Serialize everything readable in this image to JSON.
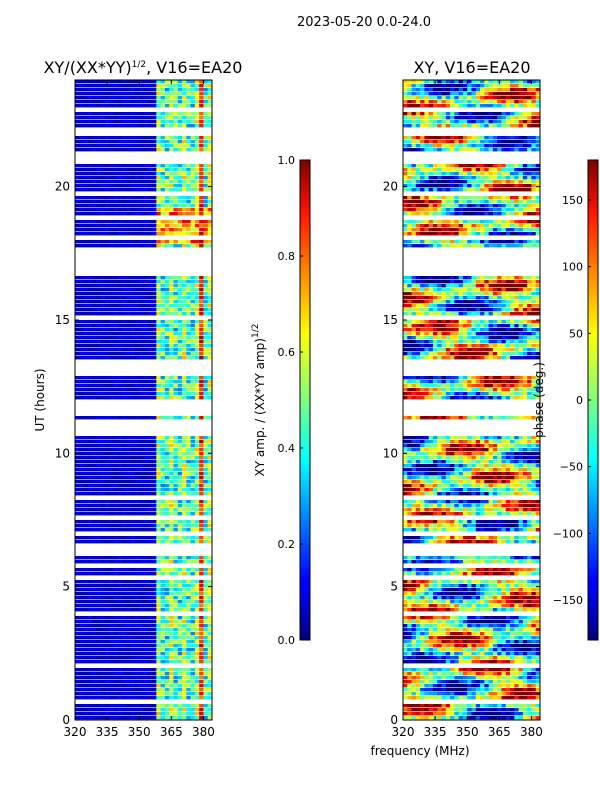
{
  "chart_data": [
    {
      "type": "heatmap",
      "suptitle": "2023-05-20 0.0-24.0",
      "title_main": "XY/(XX*YY)",
      "title_exp": "1/2",
      "title_rest": ", V16=EA20",
      "ylabel": "UT (hours)",
      "xticks": [
        "320",
        "335",
        "350",
        "365",
        "380"
      ],
      "xlim": [
        320,
        384
      ],
      "yticks": [
        "0",
        "5",
        "10",
        "15",
        "20"
      ],
      "ylim": [
        0,
        24
      ],
      "colorbar": {
        "label_main": "XY amp. / (XX*YY amp)",
        "label_exp": "1/2",
        "ticks": [
          "0.0",
          "0.2",
          "0.4",
          "0.6",
          "0.8",
          "1.0"
        ],
        "range": [
          0,
          1
        ],
        "cmap": "jet"
      },
      "high_band_mhz": [
        360,
        384
      ],
      "flag_gaps_hours": [
        [
          10.6,
          11.2
        ],
        [
          11.3,
          12.0
        ],
        [
          12.9,
          13.4
        ],
        [
          16.9,
          17.7
        ],
        [
          21.9,
          22.2
        ],
        [
          6.2,
          6.5
        ]
      ]
    },
    {
      "type": "heatmap",
      "title_main": "XY, V16=EA20",
      "xlabel": "frequency (MHz)",
      "xticks": [
        "320",
        "335",
        "350",
        "365",
        "380"
      ],
      "xlim": [
        320,
        384
      ],
      "yticks": [
        "0",
        "5",
        "10",
        "15",
        "20"
      ],
      "ylim": [
        0,
        24
      ],
      "colorbar": {
        "label_main": "phase (deg.)",
        "ticks": [
          "−150",
          "−100",
          "−50",
          "0",
          "50",
          "100",
          "150"
        ],
        "tick_values": [
          -150,
          -100,
          -50,
          0,
          50,
          100,
          150
        ],
        "range": [
          -180,
          180
        ],
        "cmap": "jet"
      }
    }
  ]
}
